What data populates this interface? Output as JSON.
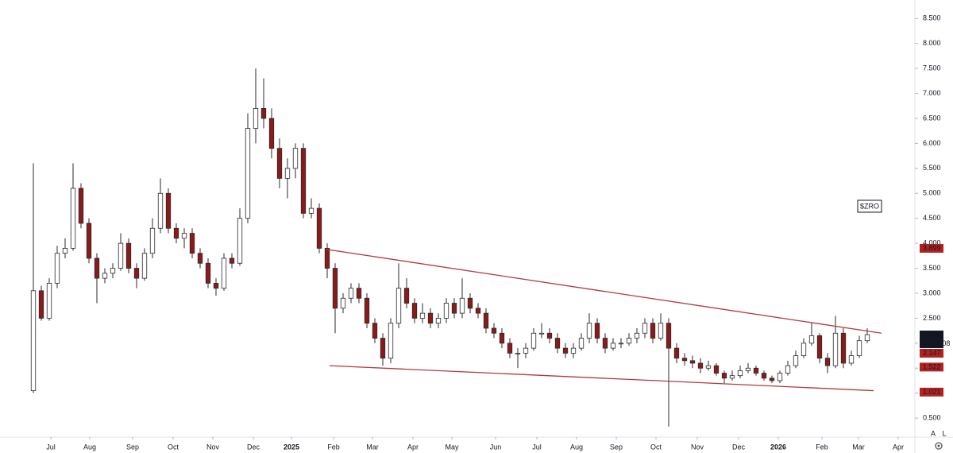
{
  "chart_data": {
    "type": "candlestick",
    "symbol_label": "$ZRO",
    "up_color": "#ffffff",
    "down_color": "#8b1a1a",
    "outline_color": "#2a2a2a",
    "ylim": [
      0.12,
      8.87
    ],
    "yticks": [
      {
        "value": 0.5,
        "label": "0.500"
      },
      {
        "value": 1.0,
        "label": "1.000"
      },
      {
        "value": 1.5,
        "label": "1.500"
      },
      {
        "value": 2.0,
        "label": "2.000"
      },
      {
        "value": 2.5,
        "label": "2.500"
      },
      {
        "value": 3.0,
        "label": "3.000"
      },
      {
        "value": 3.5,
        "label": "3.500"
      },
      {
        "value": 4.0,
        "label": "4.000"
      },
      {
        "value": 4.5,
        "label": "4.500"
      },
      {
        "value": 5.0,
        "label": "5.000"
      },
      {
        "value": 5.5,
        "label": "5.500"
      },
      {
        "value": 6.0,
        "label": "6.000"
      },
      {
        "value": 6.5,
        "label": "6.500"
      },
      {
        "value": 7.0,
        "label": "7.000"
      },
      {
        "value": 7.5,
        "label": "7.500"
      },
      {
        "value": 8.0,
        "label": "8.000"
      },
      {
        "value": 8.5,
        "label": "8.500"
      }
    ],
    "xlim": [
      -4.2,
      110.8
    ],
    "xticks": [
      {
        "value": 2.2,
        "label": "Jul"
      },
      {
        "value": 7.1,
        "label": "Aug"
      },
      {
        "value": 12.5,
        "label": "Sep"
      },
      {
        "value": 17.6,
        "label": "Oct"
      },
      {
        "value": 22.6,
        "label": "Nov"
      },
      {
        "value": 27.7,
        "label": "Dec"
      },
      {
        "value": 32.5,
        "label": "2025"
      },
      {
        "value": 37.8,
        "label": "Feb"
      },
      {
        "value": 42.7,
        "label": "Mar"
      },
      {
        "value": 47.8,
        "label": "Apr"
      },
      {
        "value": 52.7,
        "label": "May"
      },
      {
        "value": 58.2,
        "label": "Jun"
      },
      {
        "value": 63.4,
        "label": "Jul"
      },
      {
        "value": 68.4,
        "label": "Aug"
      },
      {
        "value": 73.4,
        "label": "Sep"
      },
      {
        "value": 78.4,
        "label": "Oct"
      },
      {
        "value": 83.6,
        "label": "Nov"
      },
      {
        "value": 88.8,
        "label": "Dec"
      },
      {
        "value": 93.8,
        "label": "2026"
      },
      {
        "value": 99.3,
        "label": "Feb"
      },
      {
        "value": 103.9,
        "label": "Mar"
      },
      {
        "value": 108.9,
        "label": "Apr"
      }
    ],
    "candles": [
      [
        1.05,
        5.6,
        1.0,
        3.05
      ],
      [
        3.05,
        3.15,
        2.45,
        2.5
      ],
      [
        2.5,
        3.3,
        2.45,
        3.2
      ],
      [
        3.2,
        3.95,
        3.1,
        3.8
      ],
      [
        3.8,
        4.1,
        3.7,
        3.9
      ],
      [
        3.9,
        5.6,
        3.85,
        5.1
      ],
      [
        5.1,
        5.2,
        4.3,
        4.4
      ],
      [
        4.4,
        4.5,
        3.6,
        3.7
      ],
      [
        3.7,
        3.8,
        2.8,
        3.3
      ],
      [
        3.3,
        3.5,
        3.2,
        3.4
      ],
      [
        3.4,
        3.6,
        3.3,
        3.5
      ],
      [
        3.5,
        4.2,
        3.45,
        4.0
      ],
      [
        4.0,
        4.1,
        3.4,
        3.5
      ],
      [
        3.5,
        3.6,
        3.1,
        3.3
      ],
      [
        3.3,
        3.9,
        3.25,
        3.8
      ],
      [
        3.8,
        4.5,
        3.7,
        4.3
      ],
      [
        4.3,
        5.3,
        4.2,
        5.0
      ],
      [
        5.0,
        5.1,
        4.2,
        4.3
      ],
      [
        4.3,
        4.4,
        4.0,
        4.1
      ],
      [
        4.1,
        4.3,
        3.9,
        4.2
      ],
      [
        4.2,
        4.3,
        3.7,
        3.8
      ],
      [
        3.8,
        3.9,
        3.5,
        3.6
      ],
      [
        3.6,
        3.7,
        3.1,
        3.2
      ],
      [
        3.2,
        3.3,
        2.95,
        3.1
      ],
      [
        3.1,
        3.8,
        3.05,
        3.7
      ],
      [
        3.7,
        3.8,
        3.5,
        3.6
      ],
      [
        3.6,
        4.7,
        3.55,
        4.5
      ],
      [
        4.5,
        6.6,
        4.4,
        6.3
      ],
      [
        6.3,
        7.5,
        6.0,
        6.7
      ],
      [
        6.7,
        7.3,
        6.3,
        6.5
      ],
      [
        6.5,
        6.7,
        5.7,
        5.9
      ],
      [
        5.9,
        6.1,
        5.1,
        5.3
      ],
      [
        5.3,
        5.7,
        4.9,
        5.5
      ],
      [
        5.5,
        6.0,
        5.3,
        5.9
      ],
      [
        5.9,
        6.0,
        4.5,
        4.6
      ],
      [
        4.6,
        4.9,
        4.5,
        4.7
      ],
      [
        4.7,
        4.8,
        3.8,
        3.9
      ],
      [
        3.9,
        4.0,
        3.3,
        3.5
      ],
      [
        3.5,
        3.6,
        2.2,
        2.7
      ],
      [
        2.7,
        3.0,
        2.6,
        2.9
      ],
      [
        2.9,
        3.2,
        2.8,
        3.1
      ],
      [
        3.1,
        3.2,
        2.8,
        2.9
      ],
      [
        2.9,
        3.0,
        2.3,
        2.4
      ],
      [
        2.4,
        2.5,
        2.0,
        2.1
      ],
      [
        2.1,
        2.2,
        1.55,
        1.7
      ],
      [
        1.7,
        2.5,
        1.6,
        2.4
      ],
      [
        2.4,
        3.6,
        2.3,
        3.1
      ],
      [
        3.1,
        3.3,
        2.7,
        2.8
      ],
      [
        2.8,
        2.9,
        2.4,
        2.5
      ],
      [
        2.5,
        2.8,
        2.4,
        2.6
      ],
      [
        2.6,
        2.7,
        2.3,
        2.4
      ],
      [
        2.4,
        2.6,
        2.3,
        2.5
      ],
      [
        2.5,
        2.9,
        2.4,
        2.8
      ],
      [
        2.8,
        2.9,
        2.5,
        2.6
      ],
      [
        2.6,
        3.3,
        2.5,
        2.9
      ],
      [
        2.9,
        3.0,
        2.6,
        2.7
      ],
      [
        2.7,
        2.8,
        2.5,
        2.6
      ],
      [
        2.6,
        2.7,
        2.2,
        2.3
      ],
      [
        2.3,
        2.4,
        2.1,
        2.2
      ],
      [
        2.2,
        2.3,
        1.9,
        2.0
      ],
      [
        2.0,
        2.1,
        1.7,
        1.8
      ],
      [
        1.8,
        1.9,
        1.5,
        1.8
      ],
      [
        1.8,
        2.0,
        1.7,
        1.9
      ],
      [
        1.9,
        2.3,
        1.85,
        2.2
      ],
      [
        2.2,
        2.4,
        2.1,
        2.2
      ],
      [
        2.2,
        2.3,
        2.0,
        2.1
      ],
      [
        2.1,
        2.2,
        1.8,
        1.9
      ],
      [
        1.9,
        2.0,
        1.7,
        1.8
      ],
      [
        1.8,
        2.0,
        1.7,
        1.9
      ],
      [
        1.9,
        2.2,
        1.85,
        2.1
      ],
      [
        2.1,
        2.6,
        2.0,
        2.4
      ],
      [
        2.4,
        2.5,
        2.0,
        2.1
      ],
      [
        2.1,
        2.2,
        1.8,
        1.9
      ],
      [
        1.9,
        2.1,
        1.85,
        2.0
      ],
      [
        2.0,
        2.1,
        1.9,
        2.0
      ],
      [
        2.0,
        2.2,
        1.95,
        2.1
      ],
      [
        2.1,
        2.3,
        2.0,
        2.2
      ],
      [
        2.2,
        2.5,
        2.1,
        2.4
      ],
      [
        2.4,
        2.5,
        2.0,
        2.1
      ],
      [
        2.1,
        2.6,
        2.05,
        2.4
      ],
      [
        2.4,
        2.5,
        0.33,
        1.9
      ],
      [
        1.9,
        2.0,
        1.6,
        1.7
      ],
      [
        1.7,
        1.8,
        1.55,
        1.65
      ],
      [
        1.65,
        1.75,
        1.5,
        1.6
      ],
      [
        1.6,
        1.7,
        1.4,
        1.5
      ],
      [
        1.5,
        1.65,
        1.45,
        1.55
      ],
      [
        1.55,
        1.6,
        1.35,
        1.4
      ],
      [
        1.4,
        1.45,
        1.2,
        1.3
      ],
      [
        1.3,
        1.45,
        1.25,
        1.35
      ],
      [
        1.35,
        1.55,
        1.3,
        1.45
      ],
      [
        1.45,
        1.6,
        1.4,
        1.5
      ],
      [
        1.5,
        1.55,
        1.35,
        1.4
      ],
      [
        1.4,
        1.45,
        1.25,
        1.3
      ],
      [
        1.3,
        1.35,
        1.2,
        1.25
      ],
      [
        1.25,
        1.45,
        1.2,
        1.4
      ],
      [
        1.4,
        1.65,
        1.35,
        1.55
      ],
      [
        1.55,
        1.85,
        1.5,
        1.75
      ],
      [
        1.75,
        2.1,
        1.7,
        2.0
      ],
      [
        2.0,
        2.4,
        1.95,
        2.15
      ],
      [
        2.15,
        2.2,
        1.6,
        1.7
      ],
      [
        1.7,
        1.8,
        1.4,
        1.55
      ],
      [
        1.55,
        2.55,
        1.5,
        2.2
      ],
      [
        2.2,
        2.3,
        1.5,
        1.6
      ],
      [
        1.6,
        1.85,
        1.55,
        1.75
      ],
      [
        1.75,
        2.15,
        1.7,
        2.05
      ],
      [
        2.05,
        2.3,
        2.0,
        2.17
      ]
    ],
    "trendlines": [
      {
        "color": "#b03a3a",
        "x": [
          36.8,
          106.8
        ],
        "y": [
          3.88,
          2.2
        ]
      },
      {
        "color": "#b03a3a",
        "x": [
          37.3,
          105.8
        ],
        "y": [
          1.55,
          1.05
        ]
      }
    ],
    "price_labels": [
      {
        "value": 3.899,
        "color": "#b22222"
      },
      {
        "value": 2.165,
        "color": "#131722"
      },
      {
        "value": 2.147,
        "color": "#b22222"
      },
      {
        "value": 1.522,
        "color": "#b22222"
      },
      {
        "value": 1.021,
        "color": "#b22222"
      }
    ],
    "countdown": "11:52:08",
    "axis_buttons": [
      "A",
      "L"
    ]
  }
}
